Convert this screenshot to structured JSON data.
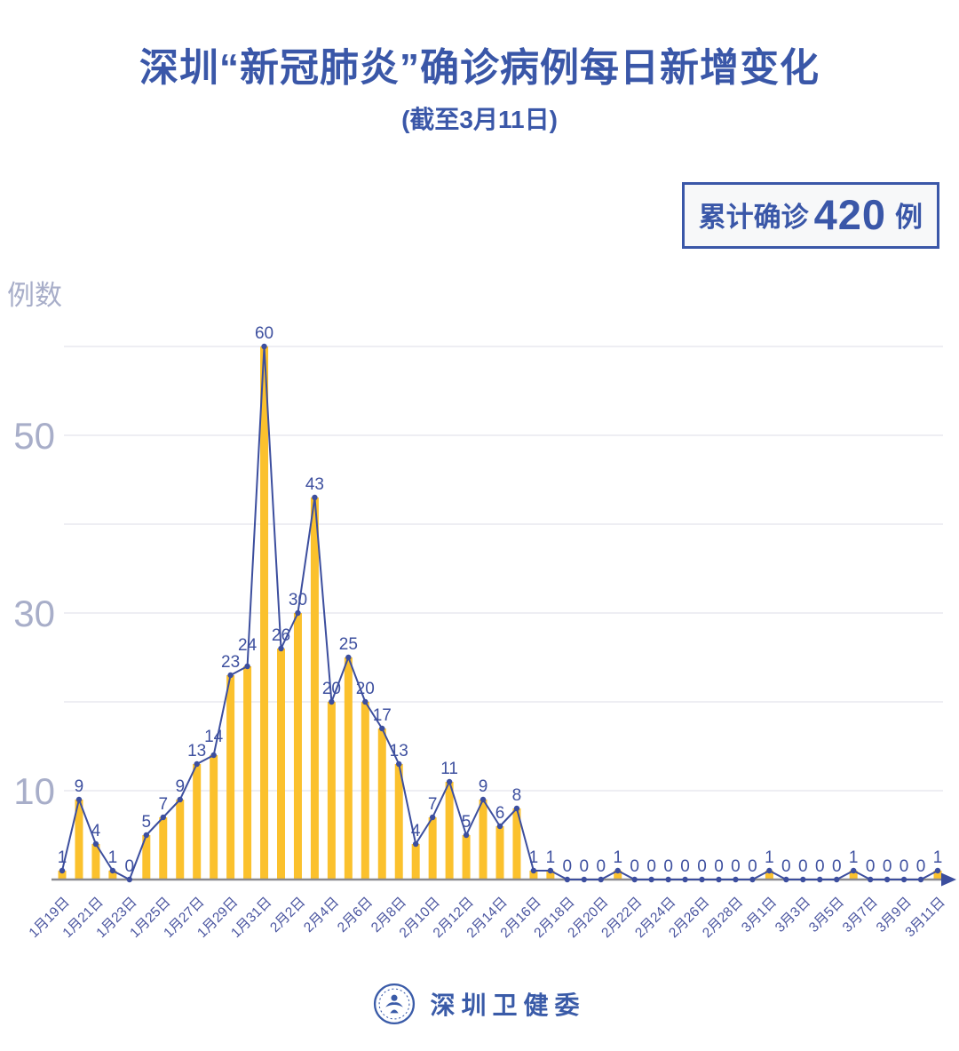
{
  "header": {
    "title": "深圳“新冠肺炎”确诊病例每日新增变化",
    "subtitle": "(截至3月11日)"
  },
  "summary_badge": {
    "label": "累计确诊",
    "value": "420",
    "unit": "例"
  },
  "chart_data": {
    "type": "bar",
    "line_overlay": true,
    "title": "深圳“新冠肺炎”确诊病例每日新增变化",
    "xlabel": "",
    "ylabel": "例数",
    "ylim": [
      0,
      62
    ],
    "grid": true,
    "legend_position": "none",
    "categories": [
      "1月19日",
      "1月20日",
      "1月21日",
      "1月22日",
      "1月23日",
      "1月24日",
      "1月25日",
      "1月26日",
      "1月27日",
      "1月28日",
      "1月29日",
      "1月30日",
      "1月31日",
      "2月1日",
      "2月2日",
      "2月3日",
      "2月4日",
      "2月5日",
      "2月6日",
      "2月7日",
      "2月8日",
      "2月9日",
      "2月10日",
      "2月11日",
      "2月12日",
      "2月13日",
      "2月14日",
      "2月15日",
      "2月16日",
      "2月17日",
      "2月18日",
      "2月19日",
      "2月20日",
      "2月21日",
      "2月22日",
      "2月23日",
      "2月24日",
      "2月25日",
      "2月26日",
      "2月27日",
      "2月28日",
      "2月29日",
      "3月1日",
      "3月2日",
      "3月3日",
      "3月4日",
      "3月5日",
      "3月6日",
      "3月7日",
      "3月8日",
      "3月9日",
      "3月10日",
      "3月11日"
    ],
    "values": [
      1,
      9,
      4,
      1,
      0,
      5,
      7,
      9,
      13,
      14,
      23,
      24,
      60,
      26,
      30,
      43,
      20,
      25,
      20,
      17,
      13,
      4,
      7,
      11,
      5,
      9,
      6,
      8,
      1,
      1,
      0,
      0,
      0,
      1,
      0,
      0,
      0,
      0,
      0,
      0,
      0,
      0,
      1,
      0,
      0,
      0,
      0,
      1,
      0,
      0,
      0,
      0,
      1
    ],
    "yticks_labeled": [
      10,
      30,
      50
    ],
    "gridlines": [
      10,
      20,
      30,
      40,
      50,
      60
    ],
    "xtick_every": 2,
    "bar_color": "#FBC12D",
    "line_color": "#3C4E9E",
    "value_label_color": "#3E509F",
    "xtick_color": "#4B56A0",
    "ytick_color": "#A8AEC9",
    "gridline_color": "#E4E4EC",
    "axis_color": "#8A8A90"
  },
  "footer": {
    "logo": "shenzhen-health-commission-seal",
    "text": "深圳卫健委"
  }
}
